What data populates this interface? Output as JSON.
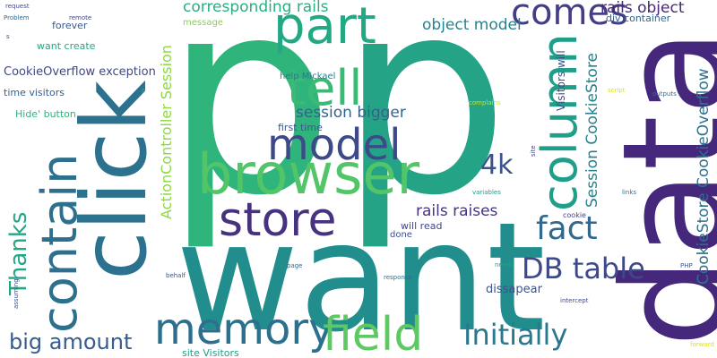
{
  "words": [
    {
      "text": "p",
      "color": "#2fb47c"
    },
    {
      "text": "p",
      "color": "#25a386"
    },
    {
      "text": "want",
      "color": "#218e8d"
    },
    {
      "text": "data",
      "color": "#45287c"
    },
    {
      "text": "click",
      "color": "#2c728e"
    },
    {
      "text": "browser",
      "color": "#52c569"
    },
    {
      "text": "store",
      "color": "#46327e"
    },
    {
      "text": "part",
      "color": "#24a884"
    },
    {
      "text": "tell",
      "color": "#3aba76"
    },
    {
      "text": "model",
      "color": "#3e4989"
    },
    {
      "text": "memory",
      "color": "#2d708e"
    },
    {
      "text": "field",
      "color": "#5ec962"
    },
    {
      "text": "contain",
      "color": "#2d708e"
    },
    {
      "text": "column",
      "color": "#1f9e89"
    },
    {
      "text": "comes",
      "color": "#433e85"
    },
    {
      "text": "fact",
      "color": "#31688e"
    },
    {
      "text": "DB table",
      "color": "#3e4989"
    },
    {
      "text": "Initially",
      "color": "#2a788e"
    },
    {
      "text": "big amount",
      "color": "#365d8d"
    },
    {
      "text": "4k",
      "color": "#3b528b"
    },
    {
      "text": "Thanks",
      "color": "#22a785"
    },
    {
      "text": "corresponding rails",
      "color": "#29af7f"
    },
    {
      "text": "rails object",
      "color": "#482878"
    },
    {
      "text": "object model",
      "color": "#26828e"
    },
    {
      "text": "session bigger",
      "color": "#33638d"
    },
    {
      "text": "rails raises",
      "color": "#46327e"
    },
    {
      "text": "CookieOverflow exception",
      "color": "#3f4788"
    },
    {
      "text": "Session CookieStore",
      "color": "#26828e"
    },
    {
      "text": "CookieStore CookieOverflow",
      "color": "#2c728e"
    },
    {
      "text": "ActionController Session",
      "color": "#8fd744"
    },
    {
      "text": "dissapear",
      "color": "#3b528b"
    },
    {
      "text": "first time",
      "color": "#38598c"
    },
    {
      "text": "will read",
      "color": "#3f4788"
    },
    {
      "text": "site Visitors",
      "color": "#1f9e89"
    },
    {
      "text": "help Mickael",
      "color": "#287d8e"
    },
    {
      "text": "want create",
      "color": "#22a785"
    },
    {
      "text": "Hide' button",
      "color": "#2fb47c"
    },
    {
      "text": "time visitors",
      "color": "#355f8d"
    },
    {
      "text": "forever",
      "color": "#375b8d"
    },
    {
      "text": "message",
      "color": "#84d44b"
    },
    {
      "text": "div container",
      "color": "#31688e"
    },
    {
      "text": "Visitors will",
      "color": "#3d4d8a"
    },
    {
      "text": "done",
      "color": "#3c4f8a"
    },
    {
      "text": "cookie",
      "color": "#404588"
    },
    {
      "text": "request",
      "color": "#3e4989"
    },
    {
      "text": "Problem",
      "color": "#31688e"
    },
    {
      "text": "remote",
      "color": "#414487"
    },
    {
      "text": "s",
      "color": "#3f4788"
    },
    {
      "text": "P",
      "color": "#25ac82"
    },
    {
      "text": "script",
      "color": "#dde318"
    },
    {
      "text": "complains",
      "color": "#d2e21b"
    },
    {
      "text": "outputs",
      "color": "#2e6e8e"
    },
    {
      "text": "site",
      "color": "#3e4989"
    },
    {
      "text": "variables",
      "color": "#1e9b8a"
    },
    {
      "text": "links",
      "color": "#2d708e"
    },
    {
      "text": "page",
      "color": "#31688e"
    },
    {
      "text": "behalf",
      "color": "#3b528b"
    },
    {
      "text": "needs",
      "color": "#1fa187"
    },
    {
      "text": "PHP",
      "color": "#3b528b"
    },
    {
      "text": "response",
      "color": "#2c728e"
    },
    {
      "text": "assuming",
      "color": "#3b528b"
    },
    {
      "text": "intercept",
      "color": "#3e4989"
    },
    {
      "text": "forward",
      "color": "#dde318"
    }
  ]
}
